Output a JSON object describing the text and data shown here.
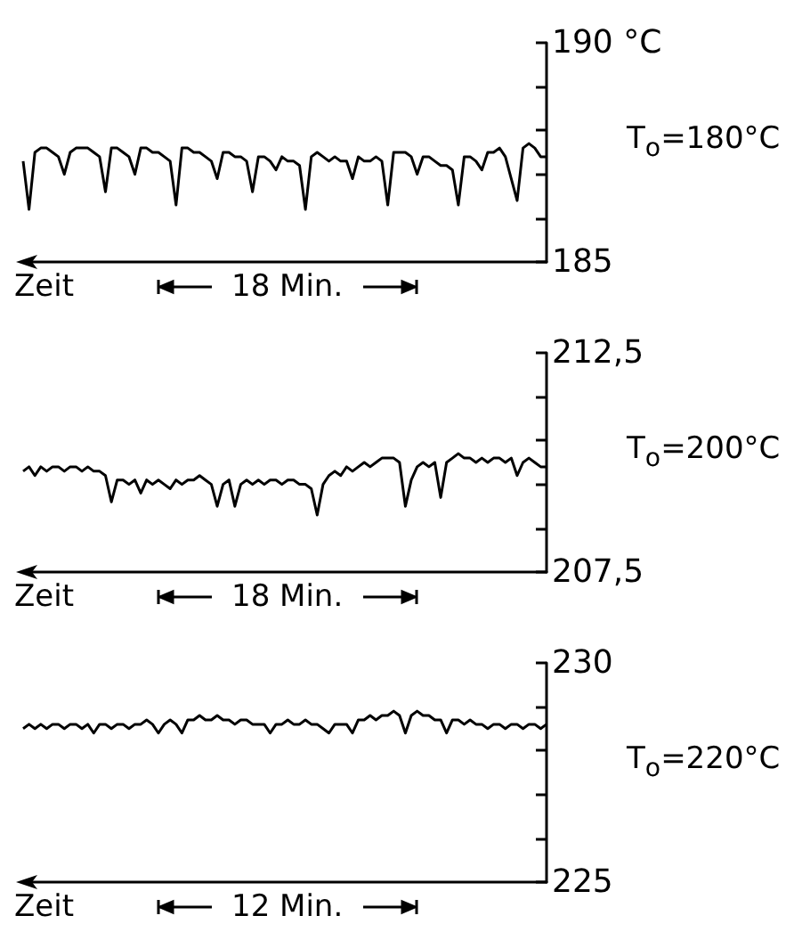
{
  "chart_data": [
    {
      "type": "line",
      "xlabel": "Zeit",
      "annotations": [
        "18 Min.",
        "T$_{o}$=180°C"
      ],
      "tick_labels": "y",
      "categories": [
        null,
        null,
        null,
        null,
        null,
        null,
        null,
        null,
        null,
        null,
        null,
        null,
        null,
        null,
        null,
        null,
        null,
        null,
        null,
        null,
        null,
        null,
        null,
        null,
        null,
        null,
        null,
        null,
        null,
        null,
        null,
        null,
        null,
        null,
        null,
        null,
        null,
        null,
        null,
        null,
        null,
        null,
        null,
        null,
        null,
        null,
        null,
        null,
        null,
        null,
        null,
        null,
        null,
        null,
        null,
        null,
        null,
        null,
        null,
        null,
        null,
        null,
        null,
        null,
        null,
        null,
        null,
        null,
        null,
        null,
        null,
        null,
        null,
        null,
        null,
        null,
        null,
        null,
        null,
        null,
        null,
        null,
        null,
        null,
        null,
        null,
        null,
        null,
        null,
        null
      ],
      "series": [
        {
          "color": "#000000",
          "values": [
            187.3,
            186.2,
            187.5,
            187.6,
            187.6,
            187.5,
            187.4,
            187.0,
            187.5,
            187.6,
            187.6,
            187.6,
            187.5,
            187.4,
            186.6,
            187.6,
            187.6,
            187.5,
            187.4,
            187.0,
            187.6,
            187.6,
            187.5,
            187.5,
            187.4,
            187.3,
            186.3,
            187.6,
            187.6,
            187.5,
            187.5,
            187.4,
            187.3,
            186.9,
            187.5,
            187.5,
            187.4,
            187.4,
            187.3,
            186.6,
            187.4,
            187.4,
            187.3,
            187.1,
            187.4,
            187.3,
            187.3,
            187.2,
            186.2,
            187.4,
            187.5,
            187.4,
            187.3,
            187.4,
            187.3,
            187.3,
            186.9,
            187.4,
            187.3,
            187.3,
            187.4,
            187.3,
            186.3,
            187.5,
            187.5,
            187.5,
            187.4,
            187.0,
            187.4,
            187.4,
            187.3,
            187.2,
            187.2,
            187.1,
            186.3,
            187.4,
            187.4,
            187.3,
            187.1,
            187.5,
            187.5,
            187.6,
            187.4,
            186.9,
            186.4,
            187.6,
            187.7,
            187.6,
            187.4,
            187.4
          ]
        }
      ],
      "ylim": [
        185,
        190
      ],
      "yticks": [
        185,
        {
          "value": 186,
          "label": null
        },
        {
          "value": 187,
          "label": null
        },
        {
          "value": 188,
          "label": null
        },
        {
          "value": 189,
          "label": null
        },
        {
          "value": 190,
          "label": "190 °C"
        }
      ]
    },
    {
      "type": "line",
      "xlabel": "Zeit",
      "annotations": [
        "18 Min.",
        "T$_{o}$=200°C"
      ],
      "tick_labels": "y",
      "categories": [
        null,
        null,
        null,
        null,
        null,
        null,
        null,
        null,
        null,
        null,
        null,
        null,
        null,
        null,
        null,
        null,
        null,
        null,
        null,
        null,
        null,
        null,
        null,
        null,
        null,
        null,
        null,
        null,
        null,
        null,
        null,
        null,
        null,
        null,
        null,
        null,
        null,
        null,
        null,
        null,
        null,
        null,
        null,
        null,
        null,
        null,
        null,
        null,
        null,
        null,
        null,
        null,
        null,
        null,
        null,
        null,
        null,
        null,
        null,
        null,
        null,
        null,
        null,
        null,
        null,
        null,
        null,
        null,
        null,
        null,
        null,
        null,
        null,
        null,
        null,
        null,
        null,
        null,
        null,
        null,
        null,
        null,
        null,
        null,
        null,
        null,
        null,
        null,
        null,
        null
      ],
      "series": [
        {
          "color": "#000000",
          "values": [
            209.8,
            209.9,
            209.7,
            209.9,
            209.8,
            209.9,
            209.9,
            209.8,
            209.9,
            209.9,
            209.8,
            209.9,
            209.8,
            209.8,
            209.7,
            209.1,
            209.6,
            209.6,
            209.5,
            209.6,
            209.3,
            209.6,
            209.5,
            209.6,
            209.5,
            209.4,
            209.6,
            209.5,
            209.6,
            209.6,
            209.7,
            209.6,
            209.5,
            209.0,
            209.5,
            209.6,
            209.0,
            209.5,
            209.6,
            209.5,
            209.6,
            209.5,
            209.6,
            209.6,
            209.5,
            209.6,
            209.6,
            209.5,
            209.5,
            209.4,
            208.8,
            209.5,
            209.7,
            209.8,
            209.7,
            209.9,
            209.8,
            209.9,
            210.0,
            209.9,
            210.0,
            210.1,
            210.1,
            210.1,
            210.0,
            209.0,
            209.6,
            209.9,
            210.0,
            209.9,
            210.0,
            209.2,
            210.0,
            210.1,
            210.2,
            210.1,
            210.1,
            210.0,
            210.1,
            210.0,
            210.1,
            210.1,
            210.0,
            210.1,
            209.7,
            210.0,
            210.1,
            210.0,
            209.9,
            209.9
          ]
        }
      ],
      "ylim": [
        207.5,
        212.5
      ],
      "yticks": [
        {
          "value": 207.5,
          "label": "207,5"
        },
        {
          "value": 208.5,
          "label": null
        },
        {
          "value": 209.5,
          "label": null
        },
        {
          "value": 210.5,
          "label": null
        },
        {
          "value": 211.5,
          "label": null
        },
        {
          "value": 212.5,
          "label": "212,5"
        }
      ]
    },
    {
      "type": "line",
      "xlabel": "Zeit",
      "annotations": [
        "12 Min.",
        "T$_{o}$=220°C"
      ],
      "tick_labels": "y",
      "categories": [
        null,
        null,
        null,
        null,
        null,
        null,
        null,
        null,
        null,
        null,
        null,
        null,
        null,
        null,
        null,
        null,
        null,
        null,
        null,
        null,
        null,
        null,
        null,
        null,
        null,
        null,
        null,
        null,
        null,
        null,
        null,
        null,
        null,
        null,
        null,
        null,
        null,
        null,
        null,
        null,
        null,
        null,
        null,
        null,
        null,
        null,
        null,
        null,
        null,
        null,
        null,
        null,
        null,
        null,
        null,
        null,
        null,
        null,
        null,
        null,
        null,
        null,
        null,
        null,
        null,
        null,
        null,
        null,
        null,
        null,
        null,
        null,
        null,
        null,
        null,
        null,
        null,
        null,
        null,
        null,
        null,
        null,
        null,
        null,
        null,
        null,
        null,
        null,
        null,
        null
      ],
      "series": [
        {
          "color": "#000000",
          "values": [
            228.5,
            228.6,
            228.5,
            228.6,
            228.5,
            228.6,
            228.6,
            228.5,
            228.6,
            228.6,
            228.5,
            228.6,
            228.4,
            228.6,
            228.6,
            228.5,
            228.6,
            228.6,
            228.5,
            228.6,
            228.6,
            228.7,
            228.6,
            228.4,
            228.6,
            228.7,
            228.6,
            228.4,
            228.7,
            228.7,
            228.8,
            228.7,
            228.7,
            228.8,
            228.7,
            228.7,
            228.6,
            228.7,
            228.7,
            228.6,
            228.6,
            228.6,
            228.4,
            228.6,
            228.6,
            228.7,
            228.6,
            228.6,
            228.7,
            228.6,
            228.6,
            228.5,
            228.4,
            228.6,
            228.6,
            228.6,
            228.4,
            228.7,
            228.7,
            228.8,
            228.7,
            228.8,
            228.8,
            228.9,
            228.8,
            228.4,
            228.8,
            228.9,
            228.8,
            228.8,
            228.7,
            228.7,
            228.4,
            228.7,
            228.7,
            228.6,
            228.7,
            228.6,
            228.6,
            228.5,
            228.6,
            228.6,
            228.5,
            228.6,
            228.6,
            228.5,
            228.6,
            228.6,
            228.5,
            228.6
          ]
        }
      ],
      "ylim": [
        225,
        230
      ],
      "yticks": [
        225,
        {
          "value": 226,
          "label": null
        },
        {
          "value": 227,
          "label": null
        },
        {
          "value": 228,
          "label": null
        },
        {
          "value": 229,
          "label": null
        },
        {
          "value": 230,
          "label": "230"
        }
      ]
    }
  ]
}
